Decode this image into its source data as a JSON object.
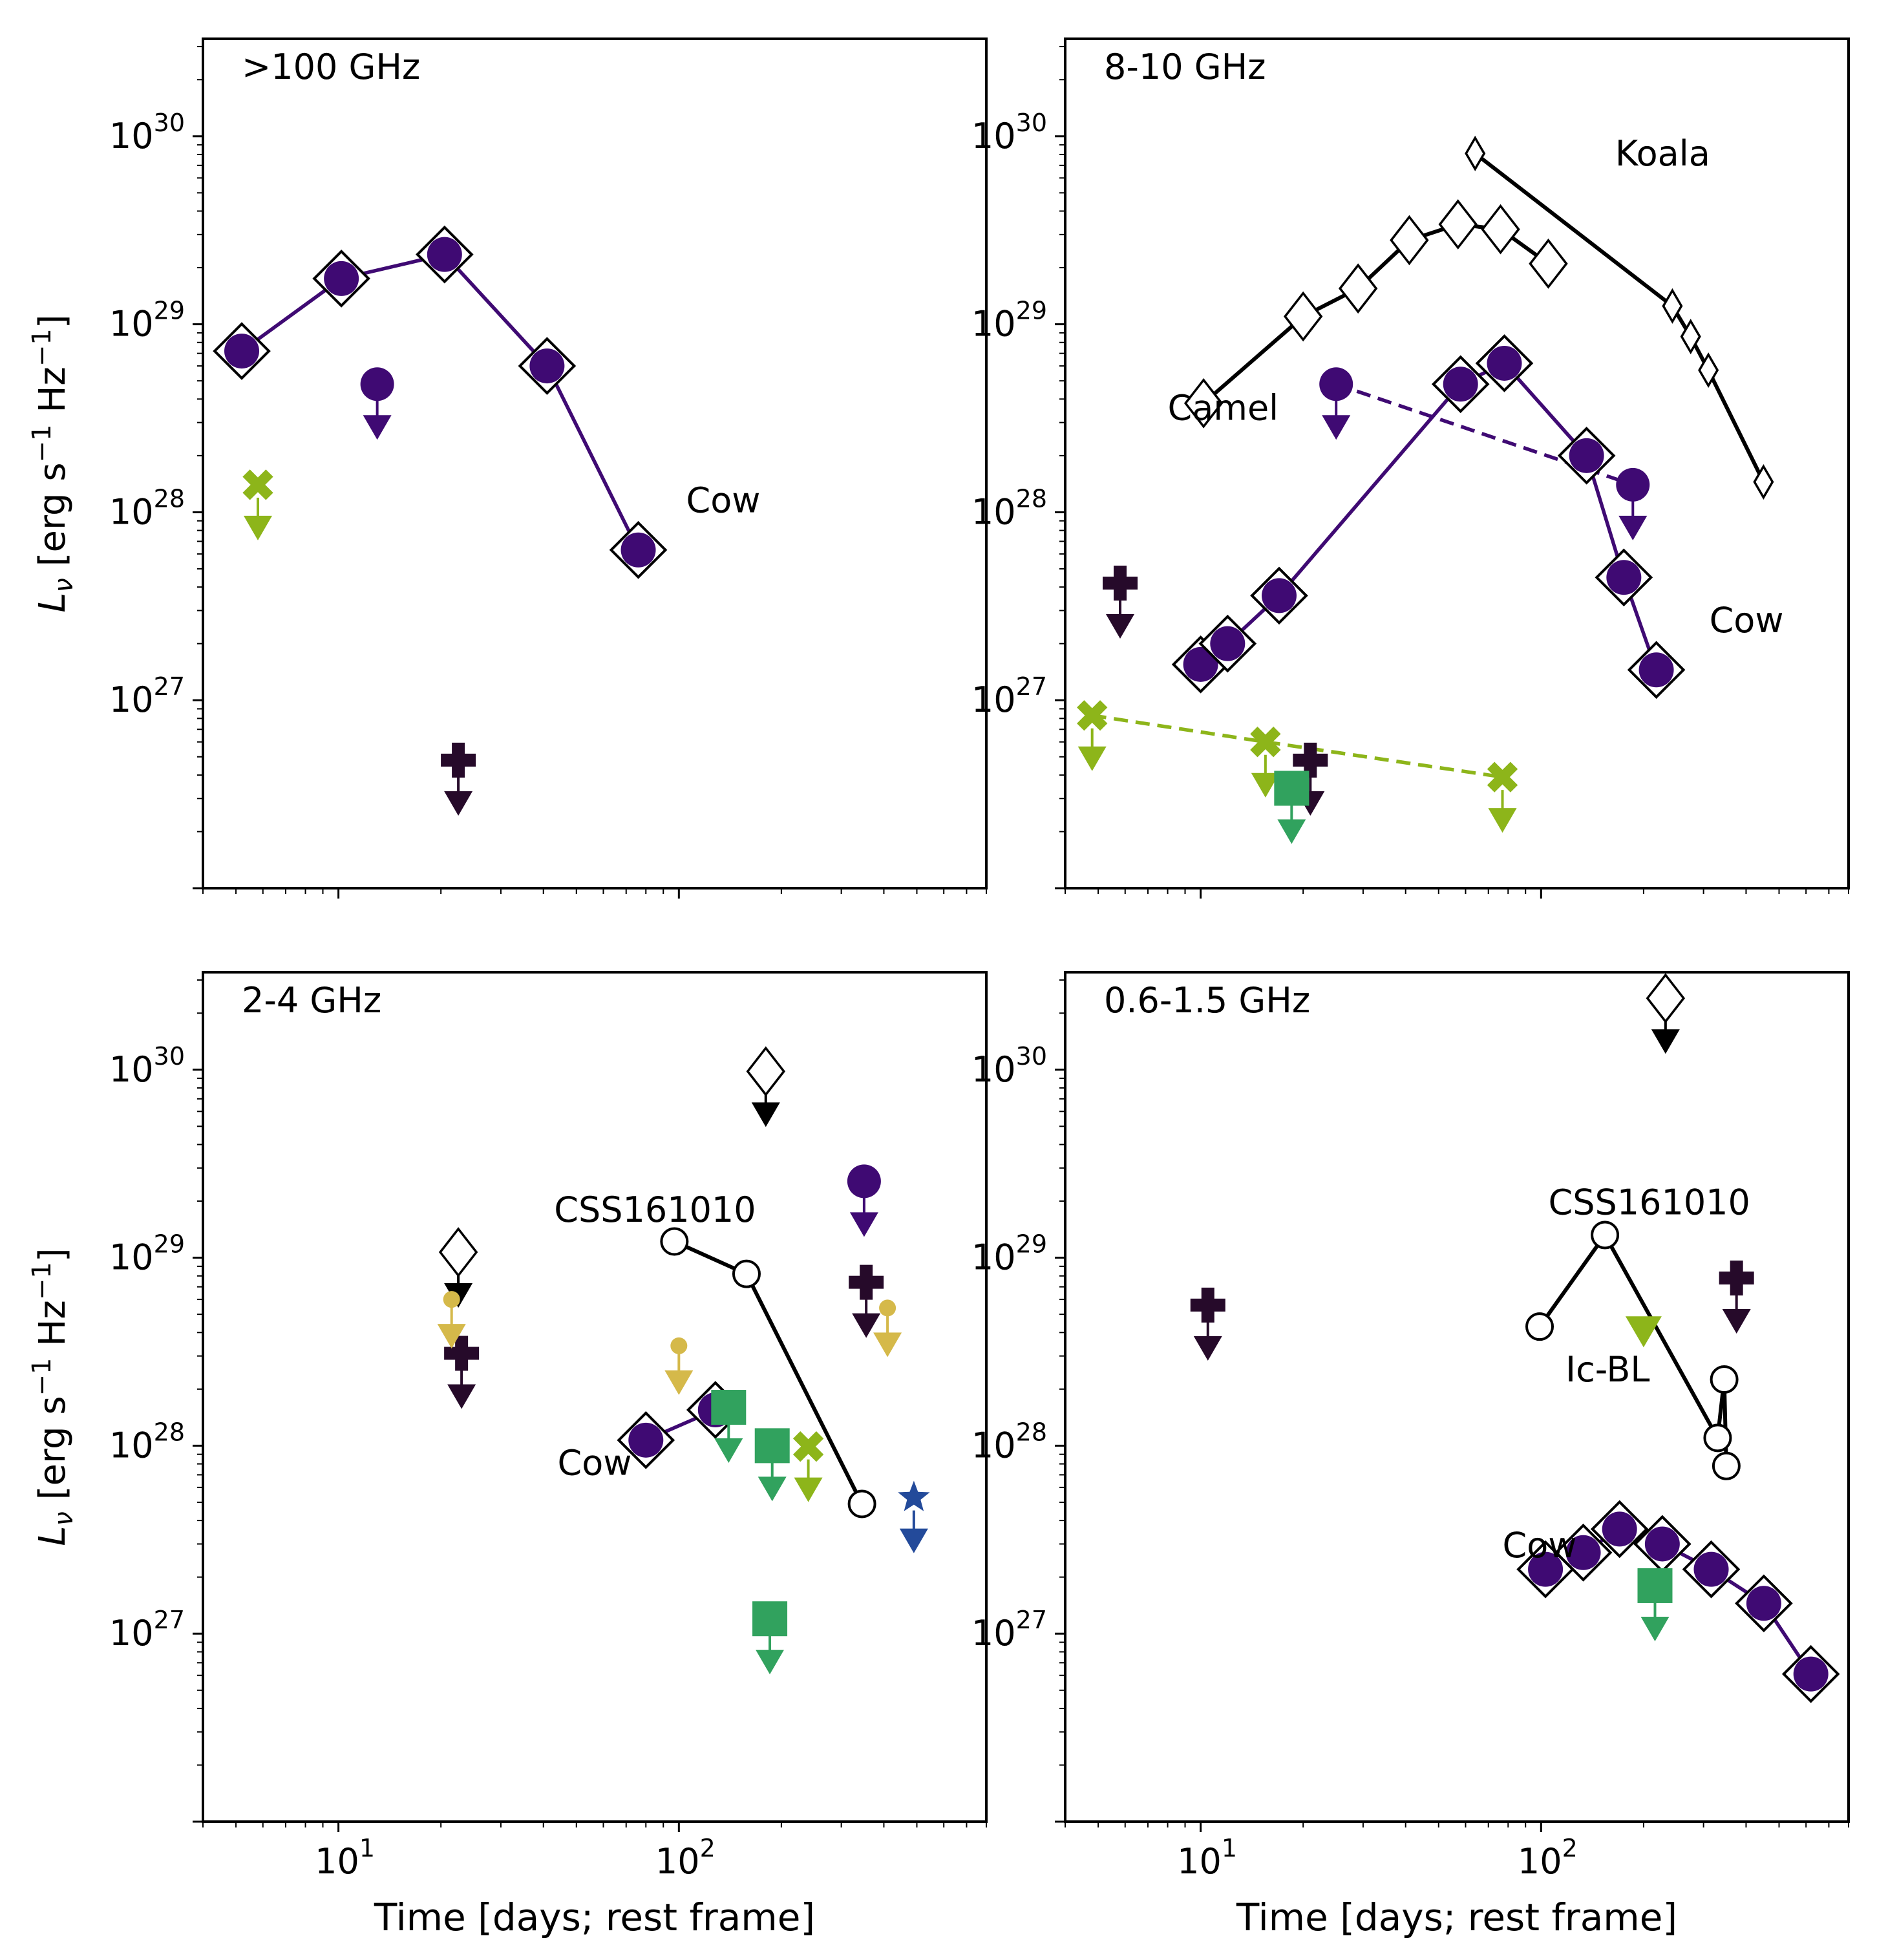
{
  "figure": {
    "xlabel": "Time [days; rest frame]",
    "ylabel_main": "L",
    "ylabel_sub": "ν",
    "ylabel_rest": " [erg s",
    "ylabel_sup1": "−1",
    "ylabel_mid": " Hz",
    "ylabel_sup2": "−1",
    "ylabel_end": "]",
    "x_ticks": [
      {
        "base": "10",
        "exp": "1",
        "value": 10
      },
      {
        "base": "10",
        "exp": "2",
        "value": 100
      }
    ],
    "y_ticks": [
      {
        "base": "10",
        "exp": "27",
        "value": 27
      },
      {
        "base": "10",
        "exp": "28",
        "value": 28
      },
      {
        "base": "10",
        "exp": "29",
        "value": 29
      },
      {
        "base": "10",
        "exp": "30",
        "value": 30
      }
    ],
    "xlim": [
      4.0,
      800
    ],
    "ylim": [
      1e+26,
      3.3e+30
    ],
    "x_scale": "log",
    "y_scale": "log"
  },
  "colors": {
    "cow": "#3f0a73",
    "cow_dark": "#2a0a44",
    "plus_dark": "#260a2a",
    "green_x": "#8db51a",
    "green_sq": "#31a25e",
    "gold": "#d5b94a",
    "blue_star": "#234a9a",
    "black": "#000000",
    "white": "#ffffff"
  },
  "chart_data": [
    {
      "type": "scatter",
      "title": ">100 GHz",
      "series": [
        {
          "name": "Cow",
          "marker": "circle-in-diamond",
          "color": "cow",
          "line": "solid",
          "points": [
            [
              5.2,
              7.2e+28
            ],
            [
              10.2,
              1.75e+29
            ],
            [
              20.5,
              2.35e+29
            ],
            [
              41,
              6e+28
            ],
            [
              76,
              6.3e+27
            ]
          ]
        },
        {
          "name": "Cow-like upper limit",
          "marker": "circle",
          "color": "cow",
          "upper": true,
          "points": [
            [
              13,
              4.8e+28
            ]
          ]
        },
        {
          "name": "X upper limit",
          "marker": "x",
          "color": "green_x",
          "upper": true,
          "points": [
            [
              5.8,
              1.4e+28
            ]
          ]
        },
        {
          "name": "Plus upper limit",
          "marker": "plus",
          "color": "plus_dark",
          "upper": true,
          "points": [
            [
              22.5,
              4.8e+26
            ]
          ]
        }
      ],
      "annotations": [
        {
          "text": "Cow",
          "x": 105,
          "y": 1e+28,
          "color": "cow"
        }
      ]
    },
    {
      "type": "scatter",
      "title": "8-10 GHz",
      "series": [
        {
          "name": "Camel",
          "marker": "diamond-open",
          "size": "large",
          "color": "black",
          "line": "solid",
          "points": [
            [
              10.2,
              3.8e+28
            ],
            [
              20,
              1.1e+29
            ],
            [
              29,
              1.55e+29
            ],
            [
              41,
              2.8e+29
            ],
            [
              57,
              3.4e+29
            ],
            [
              76,
              3.2e+29
            ],
            [
              105,
              2.1e+29
            ]
          ]
        },
        {
          "name": "Koala",
          "marker": "diamond-open",
          "size": "small",
          "color": "black",
          "line": "solid",
          "points": [
            [
              64,
              8.1e+29
            ],
            [
              243,
              1.25e+29
            ],
            [
              275,
              8.6e+28
            ],
            [
              310,
              5.7e+28
            ],
            [
              450,
              1.45e+28
            ]
          ]
        },
        {
          "name": "Cow",
          "marker": "circle-in-diamond",
          "color": "cow",
          "line": "solid",
          "points": [
            [
              10,
              1.55e+27
            ],
            [
              12,
              2e+27
            ],
            [
              17,
              3.6e+27
            ],
            [
              58,
              4.8e+28
            ],
            [
              78,
              6.2e+28
            ],
            [
              136,
              2e+28
            ],
            [
              175,
              4.5e+27
            ],
            [
              218,
              1.45e+27
            ]
          ]
        },
        {
          "name": "Cow-like upper limits",
          "marker": "circle",
          "color": "cow",
          "upper": true,
          "line": "dashed",
          "points": [
            [
              25,
              4.8e+28
            ],
            [
              186,
              1.4e+28
            ]
          ]
        },
        {
          "name": "Plus upper limits",
          "marker": "plus",
          "color": "plus_dark",
          "upper": true,
          "points": [
            [
              5.8,
              4.2e+27
            ],
            [
              21,
              4.8e+26
            ]
          ]
        },
        {
          "name": "X upper limits",
          "marker": "x",
          "color": "green_x",
          "upper": true,
          "line": "dashed",
          "points": [
            [
              4.8,
              8.3e+26
            ],
            [
              15.5,
              6e+26
            ],
            [
              77,
              3.9e+26
            ]
          ]
        },
        {
          "name": "Square upper limit",
          "marker": "square",
          "color": "green_sq",
          "upper": true,
          "points": [
            [
              18.5,
              3.4e+26
            ]
          ]
        }
      ],
      "annotations": [
        {
          "text": "Koala",
          "x": 165,
          "y": 7e+29,
          "color": "black"
        },
        {
          "text": "Camel",
          "x": 8.0,
          "y": 3.1e+28,
          "color": "black"
        },
        {
          "text": "Cow",
          "x": 312,
          "y": 2.3e+27,
          "color": "cow"
        }
      ]
    },
    {
      "type": "scatter",
      "title": "2-4 GHz",
      "series": [
        {
          "name": "CSS161010",
          "marker": "circle-open",
          "color": "black",
          "line": "solid",
          "points": [
            [
              97,
              1.22e+29
            ],
            [
              158,
              8.2e+28
            ],
            [
              345,
              4.9e+27
            ]
          ]
        },
        {
          "name": "Cow",
          "marker": "circle-in-diamond",
          "color": "cow",
          "line": "solid",
          "points": [
            [
              80,
              1.07e+28
            ],
            [
              128,
              1.55e+28
            ]
          ]
        },
        {
          "name": "Diamond upper limits",
          "marker": "diamond-open",
          "color": "black",
          "upper": true,
          "points": [
            [
              22.5,
              1.07e+29
            ],
            [
              180,
              9.8e+29
            ]
          ]
        },
        {
          "name": "Cow-like upper limit",
          "marker": "circle",
          "color": "cow",
          "upper": true,
          "points": [
            [
              350,
              2.55e+29
            ]
          ]
        },
        {
          "name": "Plus upper limits",
          "marker": "plus",
          "color": "plus_dark",
          "upper": true,
          "points": [
            [
              23,
              3.1e+28
            ],
            [
              355,
              7.4e+28
            ]
          ]
        },
        {
          "name": "Gold upper limits",
          "marker": "small-circle",
          "color": "gold",
          "upper": true,
          "points": [
            [
              21.5,
              6e+28
            ],
            [
              100,
              3.4e+28
            ],
            [
              410,
              5.4e+28
            ]
          ]
        },
        {
          "name": "Square upper limits",
          "marker": "square",
          "color": "green_sq",
          "upper": true,
          "points": [
            [
              140,
              1.6e+28
            ],
            [
              188,
              1e+28
            ],
            [
              185,
              1.2e+27
            ]
          ]
        },
        {
          "name": "X upper limit",
          "marker": "x",
          "color": "green_x",
          "upper": true,
          "points": [
            [
              240,
              9.9e+27
            ]
          ]
        },
        {
          "name": "Star upper limit",
          "marker": "star",
          "color": "blue_star",
          "upper": true,
          "points": [
            [
              490,
              5.3e+27
            ]
          ]
        }
      ],
      "annotations": [
        {
          "text": "CSS161010",
          "x": 43,
          "y": 1.55e+29,
          "color": "black"
        },
        {
          "text": "Cow",
          "x": 44,
          "y": 7e+27,
          "color": "cow"
        }
      ]
    },
    {
      "type": "scatter",
      "title": "0.6-1.5 GHz",
      "series": [
        {
          "name": "CSS161010",
          "marker": "circle-open",
          "color": "black",
          "line": "solid",
          "points": [
            [
              99,
              4.3e+28
            ],
            [
              154,
              1.32e+29
            ],
            [
              330,
              1.1e+28
            ],
            [
              345,
              2.25e+28
            ],
            [
              350,
              7.8e+27
            ]
          ]
        },
        {
          "name": "Cow",
          "marker": "circle-in-diamond",
          "color": "cow",
          "line": "solid",
          "points": [
            [
              103,
              2.2e+27
            ],
            [
              133,
              2.7e+27
            ],
            [
              170,
              3.6e+27
            ],
            [
              227,
              3e+27
            ],
            [
              316,
              2.2e+27
            ],
            [
              451,
              1.45e+27
            ],
            [
              620,
              6.1e+26
            ]
          ]
        },
        {
          "name": "Diamond upper limit",
          "marker": "diamond-open",
          "color": "black",
          "upper": true,
          "points": [
            [
              232,
              2.4e+30
            ]
          ]
        },
        {
          "name": "Plus upper limits",
          "marker": "plus",
          "color": "plus_dark",
          "upper": true,
          "points": [
            [
              10.5,
              5.6e+28
            ],
            [
              375,
              7.8e+28
            ]
          ]
        },
        {
          "name": "Ic-BL",
          "marker": "triangle-down",
          "color": "green_x",
          "points": [
            [
              200,
              4.1e+28
            ]
          ]
        },
        {
          "name": "Square upper limit",
          "marker": "square",
          "color": "green_sq",
          "upper": true,
          "points": [
            [
              216,
              1.8e+27
            ]
          ]
        }
      ],
      "annotations": [
        {
          "text": "CSS161010",
          "x": 105,
          "y": 1.7e+29,
          "color": "black"
        },
        {
          "text": "Ic-BL",
          "x": 118,
          "y": 2.2e+28,
          "color": "green_x"
        },
        {
          "text": "Cow",
          "x": 77,
          "y": 2.55e+27,
          "color": "cow"
        }
      ]
    }
  ]
}
